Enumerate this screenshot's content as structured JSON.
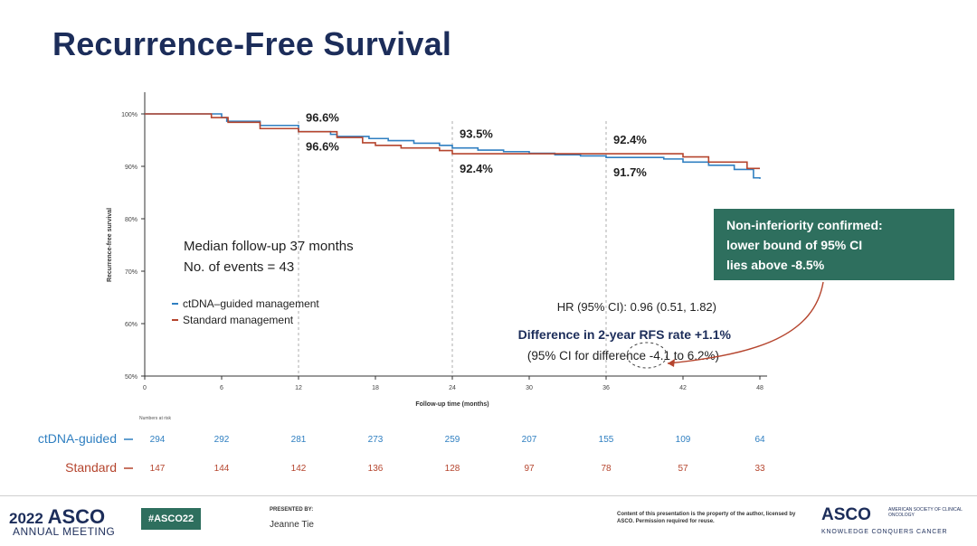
{
  "slide": {
    "title": "Recurrence-Free Survival"
  },
  "chart_data": {
    "type": "line",
    "subtype": "kaplan-meier",
    "title": "",
    "xlabel": "Follow-up time (months)",
    "ylabel": "Recurrence-free survival",
    "xlim": [
      0,
      48
    ],
    "ylim": [
      50,
      100
    ],
    "x_ticks": [
      "0",
      "6",
      "12",
      "18",
      "24",
      "30",
      "36",
      "42",
      "48"
    ],
    "y_ticks": [
      "100%",
      "90%",
      "80%",
      "70%",
      "60%",
      "50%"
    ],
    "reference_lines_x": [
      12,
      24,
      36
    ],
    "series": [
      {
        "name": "ctDNA–guided management",
        "color": "#2f7fc1",
        "x": [
          0,
          5.2,
          6,
          6.4,
          9,
          12,
          14.5,
          15,
          17.5,
          19,
          21,
          23,
          24,
          26,
          28,
          30,
          32,
          34,
          36,
          38,
          40.5,
          42,
          44,
          46,
          47.5,
          48
        ],
        "y": [
          100,
          100,
          99.3,
          98.6,
          97.8,
          96.6,
          96.1,
          95.7,
          95.3,
          94.9,
          94.4,
          94.0,
          93.5,
          93.1,
          92.8,
          92.5,
          92.2,
          92.0,
          91.7,
          91.7,
          91.4,
          90.8,
          90.2,
          89.4,
          87.8,
          87.6
        ]
      },
      {
        "name": "Standard management",
        "color": "#b5452e",
        "x": [
          0,
          3,
          5.2,
          6.5,
          9,
          12,
          15,
          17,
          18,
          20,
          23,
          24,
          26,
          30,
          33,
          36,
          39,
          42,
          44,
          47,
          48
        ],
        "y": [
          100,
          100,
          99.3,
          98.4,
          97.2,
          96.6,
          95.5,
          94.5,
          94.0,
          93.5,
          93.0,
          92.4,
          92.4,
          92.4,
          92.4,
          92.4,
          92.4,
          91.8,
          90.8,
          89.6,
          89.6
        ]
      }
    ],
    "point_labels": [
      {
        "text": "96.6%",
        "series": 0,
        "x": 12,
        "position": "above"
      },
      {
        "text": "96.6%",
        "series": 1,
        "x": 12,
        "position": "below"
      },
      {
        "text": "93.5%",
        "series": 0,
        "x": 24,
        "position": "above"
      },
      {
        "text": "92.4%",
        "series": 1,
        "x": 24,
        "position": "below"
      },
      {
        "text": "92.4%",
        "series": 1,
        "x": 36,
        "position": "above"
      },
      {
        "text": "91.7%",
        "series": 0,
        "x": 36,
        "position": "below"
      }
    ],
    "annotations": {
      "median_followup": "Median follow-up 37 months",
      "events": "No. of events = 43",
      "hr": "HR (95% CI): 0.96 (0.51, 1.82)",
      "difference": "Difference in 2-year RFS rate +1.1%",
      "difference_ci": "(95% CI for difference -4.1 to 6.2%)",
      "callout": [
        "Non-inferiority confirmed:",
        "lower bound of 95% CI",
        "lies above -8.5%"
      ],
      "callout_color": "#2e6f5e",
      "arrow_color": "#b5452e"
    },
    "legend_position": "bottom-left",
    "risk_table": {
      "title": "Numbers at risk",
      "times": [
        0,
        6,
        12,
        18,
        24,
        30,
        36,
        42,
        48
      ],
      "rows": [
        {
          "label": "ctDNA-guided",
          "color": "#2f7fc1",
          "values": [
            294,
            292,
            281,
            273,
            259,
            207,
            155,
            109,
            64
          ]
        },
        {
          "label": "Standard",
          "color": "#b5452e",
          "values": [
            147,
            144,
            142,
            136,
            128,
            97,
            78,
            57,
            33
          ]
        }
      ]
    }
  },
  "footer": {
    "year": "2022",
    "asco": "ASCO",
    "meeting": "ANNUAL MEETING",
    "hashtag": "#ASCO22",
    "presented_by": "PRESENTED BY:",
    "presenter": "Jeanne Tie",
    "copyright": "Content of this presentation is the property of the author, licensed by ASCO. Permission required for reuse.",
    "logo": "ASCO",
    "society": "AMERICAN SOCIETY OF CLINICAL ONCOLOGY",
    "tagline": "KNOWLEDGE CONQUERS CANCER"
  }
}
